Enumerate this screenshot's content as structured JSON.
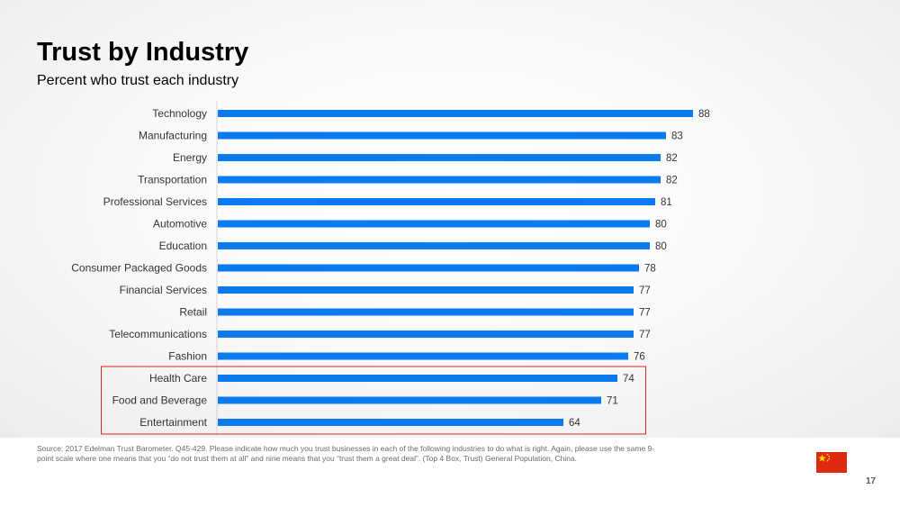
{
  "slide": {
    "title": "Trust by Industry",
    "subtitle": "Percent who trust each industry",
    "footnote": "Source: 2017 Edelman Trust Barometer. Q45-429. Please indicate how much you trust businesses in each of the following industries to do what is right. Again, please use the same 9-point scale where one means that you “do not trust them at all” and nine means that you “trust them a great deal”. (Top 4 Box, Trust) General Population, China.",
    "page_number": "17",
    "flag_icon": "china-flag-icon"
  },
  "colors": {
    "bar": "#0A7BEF",
    "highlight_box": "#D9262B",
    "text": "#333333"
  },
  "chart_data": {
    "type": "bar",
    "orientation": "horizontal",
    "title": "Trust by Industry",
    "subtitle": "Percent who trust each industry",
    "categories": [
      "Technology",
      "Manufacturing",
      "Energy",
      "Transportation",
      "Professional Services",
      "Automotive",
      "Education",
      "Consumer Packaged Goods",
      "Financial Services",
      "Retail",
      "Telecommunications",
      "Fashion",
      "Health Care",
      "Food and Beverage",
      "Entertainment"
    ],
    "values": [
      88,
      83,
      82,
      82,
      81,
      80,
      80,
      78,
      77,
      77,
      77,
      76,
      74,
      71,
      64
    ],
    "xlim": [
      0,
      100
    ],
    "data_labels": true,
    "grid": false,
    "highlighted_categories": [
      "Health Care",
      "Food and Beverage",
      "Entertainment"
    ]
  }
}
